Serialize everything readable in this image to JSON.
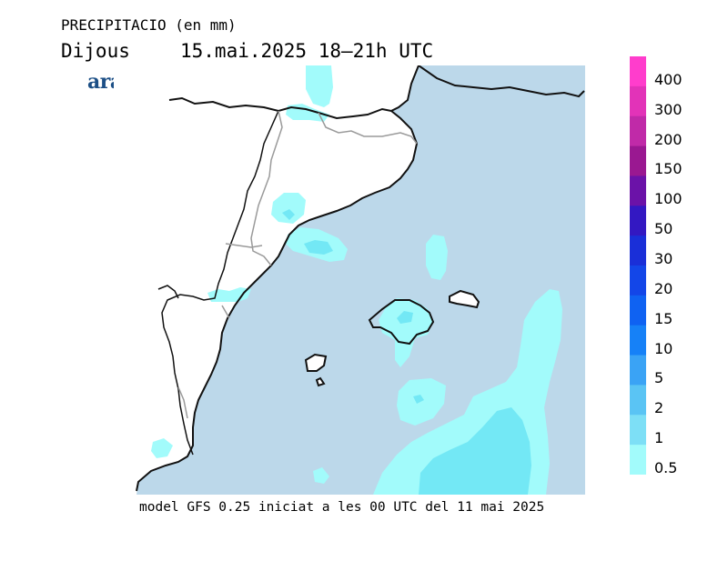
{
  "title": "PRECIPITACIO (en mm)",
  "day": "Dijous",
  "datetime": "15.mai.2025 18—21h UTC",
  "brand": "ara.cat",
  "footer": "model GFS 0.25 iniciat a les 00 UTC del 11 mai 2025",
  "map": {
    "sea_color": "#bcd8ea",
    "land_color": "#ffffff",
    "coast_color": "#111111",
    "border_color": "#9a9a9a",
    "precip_light_color": "#a2fbfb",
    "precip_mid_color": "#73e8f5"
  },
  "legend": {
    "labels": [
      "400",
      "300",
      "200",
      "150",
      "100",
      "50",
      "30",
      "20",
      "15",
      "10",
      "5",
      "2",
      "1",
      "0.5"
    ],
    "colors": [
      "#ff3dcc",
      "#e233b8",
      "#c02aa8",
      "#9a1891",
      "#6b12a8",
      "#3318c2",
      "#1a2fd8",
      "#1346e8",
      "#0f62f2",
      "#1681f7",
      "#3aa3f5",
      "#5ac4f4",
      "#7ddff6",
      "#a2fbfb"
    ]
  }
}
